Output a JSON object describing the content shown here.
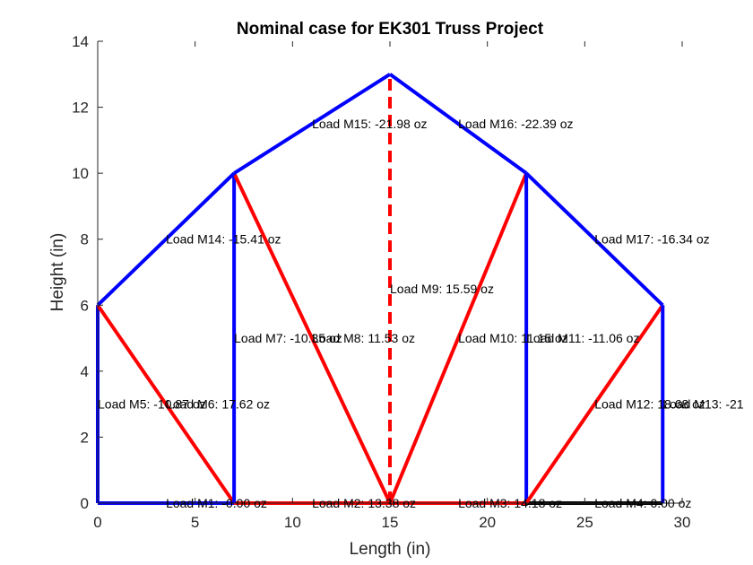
{
  "chart_data": {
    "type": "line",
    "title": "Nominal case for EK301 Truss Project",
    "xlabel": "Length (in)",
    "ylabel": "Height (in)",
    "xlim": [
      0,
      30
    ],
    "ylim": [
      0,
      14
    ],
    "xticks": [
      0,
      5,
      10,
      15,
      20,
      25,
      30
    ],
    "yticks": [
      0,
      2,
      4,
      6,
      8,
      10,
      12,
      14
    ],
    "grid": false,
    "legend": "none",
    "colors": {
      "tension": "#ff0000",
      "compression": "#0000ff",
      "axis": "#262626"
    },
    "members": [
      {
        "label": "Load M1: -0.00 oz",
        "x1": 0,
        "y1": 0,
        "x2": 7,
        "y2": 0,
        "color": "#0000ff",
        "dashed": false
      },
      {
        "label": "Load M2: 13.38 oz",
        "x1": 7,
        "y1": 0,
        "x2": 15,
        "y2": 0,
        "color": "#ff0000",
        "dashed": false
      },
      {
        "label": "Load M3: 14.18 oz",
        "x1": 15,
        "y1": 0,
        "x2": 22,
        "y2": 0,
        "color": "#ff0000",
        "dashed": false
      },
      {
        "label": "Load M4: 0.00 oz",
        "x1": 22,
        "y1": 0,
        "x2": 29,
        "y2": 0,
        "color": "#000000",
        "dashed": false
      },
      {
        "label": "Load M5: -10.87 oz",
        "x1": 0,
        "y1": 0,
        "x2": 0,
        "y2": 6,
        "color": "#0000ff",
        "dashed": false
      },
      {
        "label": "Load M6: 17.62 oz",
        "x1": 0,
        "y1": 6,
        "x2": 7,
        "y2": 0,
        "color": "#ff0000",
        "dashed": false
      },
      {
        "label": "Load M7: -10.35 oz",
        "x1": 7,
        "y1": 0,
        "x2": 7,
        "y2": 10,
        "color": "#0000ff",
        "dashed": false
      },
      {
        "label": "Load M8: 11.53 oz",
        "x1": 7,
        "y1": 10,
        "x2": 15,
        "y2": 0,
        "color": "#ff0000",
        "dashed": false
      },
      {
        "label": "Load M9: 15.59 oz",
        "x1": 15,
        "y1": 0,
        "x2": 15,
        "y2": 13,
        "color": "#ff0000",
        "dashed": true
      },
      {
        "label": "Load M10: 11.15 oz",
        "x1": 15,
        "y1": 0,
        "x2": 22,
        "y2": 10,
        "color": "#ff0000",
        "dashed": false
      },
      {
        "label": "Load M11: -11.06 oz",
        "x1": 22,
        "y1": 0,
        "x2": 22,
        "y2": 10,
        "color": "#0000ff",
        "dashed": false
      },
      {
        "label": "Load M12: 18.68 oz",
        "x1": 22,
        "y1": 0,
        "x2": 29,
        "y2": 6,
        "color": "#ff0000",
        "dashed": false
      },
      {
        "label": "Load M13: -21",
        "x1": 29,
        "y1": 0,
        "x2": 29,
        "y2": 6,
        "color": "#0000ff",
        "dashed": false
      },
      {
        "label": "Load M14: -15.41 oz",
        "x1": 0,
        "y1": 6,
        "x2": 7,
        "y2": 10,
        "color": "#0000ff",
        "dashed": false
      },
      {
        "label": "Load M15: -21.98 oz",
        "x1": 7,
        "y1": 10,
        "x2": 15,
        "y2": 13,
        "color": "#0000ff",
        "dashed": false
      },
      {
        "label": "Load M16: -22.39 oz",
        "x1": 15,
        "y1": 13,
        "x2": 22,
        "y2": 10,
        "color": "#0000ff",
        "dashed": false
      },
      {
        "label": "Load M17: -16.34 oz",
        "x1": 22,
        "y1": 10,
        "x2": 29,
        "y2": 6,
        "color": "#0000ff",
        "dashed": false
      }
    ]
  }
}
